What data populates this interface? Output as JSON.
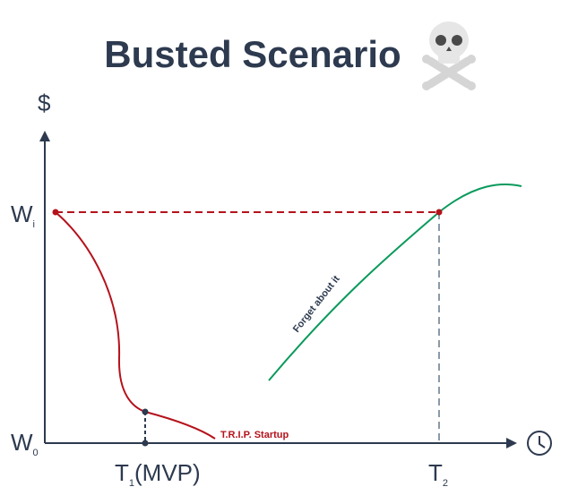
{
  "title": "Busted Scenario",
  "y_axis": {
    "label": "$",
    "ticks": [
      {
        "main": "W",
        "sub": "i"
      },
      {
        "main": "W",
        "sub": "0"
      }
    ]
  },
  "x_axis": {
    "ticks": [
      {
        "main": "T",
        "sub": "1",
        "suffix": "(MVP)"
      },
      {
        "main": "T",
        "sub": "2"
      }
    ]
  },
  "curves": [
    {
      "label": "T.R.I.P. Startup"
    },
    {
      "label": "Forget about it"
    }
  ]
}
